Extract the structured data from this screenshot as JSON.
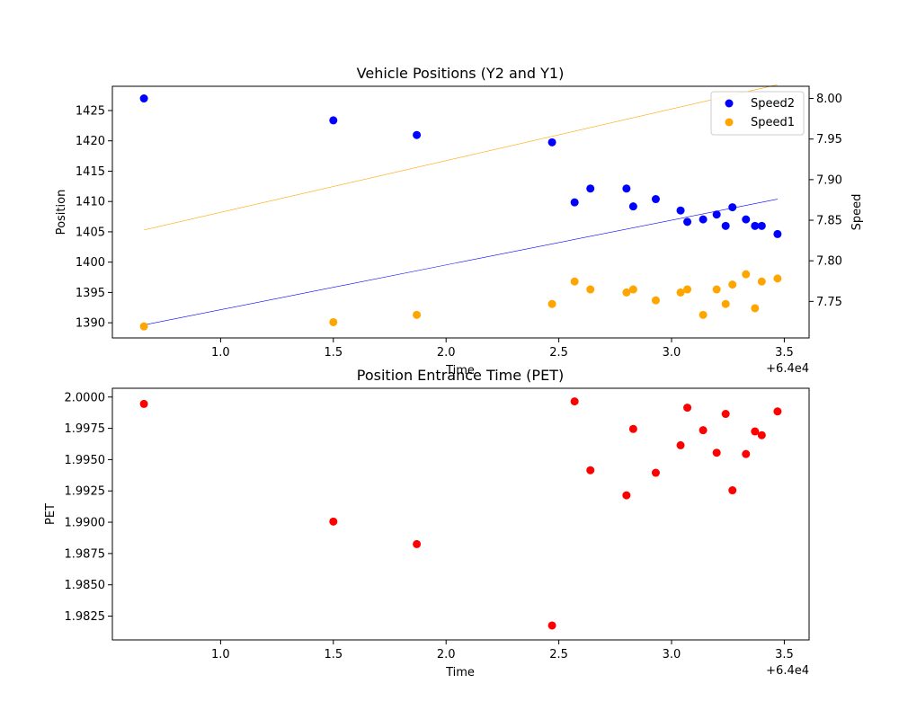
{
  "chart_data": [
    {
      "type": "scatter",
      "title": "Vehicle Positions (Y2 and Y1)",
      "xlabel": "Time",
      "ylabel": "Position",
      "y2label": "Speed",
      "x_offset_label": "+6.4e4",
      "xlim": [
        64000.52,
        64003.61
      ],
      "ylim": [
        1387.5,
        1429.0
      ],
      "y2lim": [
        7.705,
        8.015
      ],
      "x_ticks": [
        {
          "v": 64001.0,
          "label": "1.0"
        },
        {
          "v": 64001.5,
          "label": "1.5"
        },
        {
          "v": 64002.0,
          "label": "2.0"
        },
        {
          "v": 64002.5,
          "label": "2.5"
        },
        {
          "v": 64003.0,
          "label": "3.0"
        },
        {
          "v": 64003.5,
          "label": "3.5"
        }
      ],
      "y_ticks": [
        1390,
        1395,
        1400,
        1405,
        1410,
        1415,
        1420,
        1425
      ],
      "y2_ticks": [
        "7.75",
        "7.80",
        "7.85",
        "7.90",
        "7.95",
        "8.00"
      ],
      "legend": {
        "placement": "top-right",
        "entries": [
          {
            "name": "Speed2",
            "color": "#0000ff"
          },
          {
            "name": "Speed1",
            "color": "#ffa500"
          }
        ]
      },
      "series": [
        {
          "name": "Speed2",
          "color": "#0000ff",
          "axis": "right",
          "x": [
            64000.66,
            64001.5,
            64001.87,
            64002.47,
            64002.57,
            64002.64,
            64002.8,
            64002.83,
            64002.93,
            64003.04,
            64003.07,
            64003.14,
            64003.2,
            64003.24,
            64003.27,
            64003.33,
            64003.37,
            64003.4,
            64003.47
          ],
          "y": [
            8.0,
            7.973,
            7.955,
            7.946,
            7.872,
            7.889,
            7.889,
            7.867,
            7.876,
            7.862,
            7.848,
            7.851,
            7.857,
            7.843,
            7.866,
            7.851,
            7.843,
            7.843,
            7.833
          ]
        },
        {
          "name": "Speed1",
          "color": "#ffa500",
          "axis": "left",
          "x": [
            64000.66,
            64001.5,
            64001.87,
            64002.47,
            64002.57,
            64002.64,
            64002.8,
            64002.83,
            64002.93,
            64003.04,
            64003.07,
            64003.14,
            64003.2,
            64003.24,
            64003.27,
            64003.33,
            64003.37,
            64003.4,
            64003.47
          ],
          "y": [
            1389.4,
            1390.1,
            1391.3,
            1393.1,
            1396.8,
            1395.5,
            1395.0,
            1395.5,
            1393.7,
            1395.0,
            1395.5,
            1391.3,
            1395.5,
            1393.1,
            1396.3,
            1398.0,
            1392.4,
            1396.8,
            1397.3
          ]
        }
      ],
      "trend_lines": [
        {
          "color": "#ffa500",
          "axis": "right",
          "x": [
            64000.66,
            64003.47
          ],
          "y": [
            7.838,
            8.017
          ]
        },
        {
          "color": "#0000ff",
          "axis": "right",
          "x": [
            64000.66,
            64003.47
          ],
          "y": [
            7.721,
            7.876
          ]
        }
      ]
    },
    {
      "type": "scatter",
      "title": "Position Entrance Time (PET)",
      "xlabel": "Time",
      "ylabel": "PET",
      "x_offset_label": "+6.4e4",
      "xlim": [
        64000.52,
        64003.61
      ],
      "ylim": [
        1.9806,
        2.0007
      ],
      "x_ticks": [
        {
          "v": 64001.0,
          "label": "1.0"
        },
        {
          "v": 64001.5,
          "label": "1.5"
        },
        {
          "v": 64002.0,
          "label": "2.0"
        },
        {
          "v": 64002.5,
          "label": "2.5"
        },
        {
          "v": 64003.0,
          "label": "3.0"
        },
        {
          "v": 64003.5,
          "label": "3.5"
        }
      ],
      "y_ticks": [
        "1.9825",
        "1.9850",
        "1.9875",
        "1.9900",
        "1.9925",
        "1.9950",
        "1.9975",
        "2.0000"
      ],
      "series": [
        {
          "name": "PET",
          "color": "#ff0000",
          "x": [
            64000.66,
            64001.5,
            64001.87,
            64002.47,
            64002.57,
            64002.64,
            64002.8,
            64002.83,
            64002.93,
            64003.04,
            64003.07,
            64003.14,
            64003.2,
            64003.24,
            64003.27,
            64003.33,
            64003.37,
            64003.4,
            64003.47
          ],
          "y": [
            1.99945,
            1.99005,
            1.98825,
            1.98175,
            1.99965,
            1.99415,
            1.99215,
            1.99745,
            1.99395,
            1.99615,
            1.99915,
            1.99735,
            1.99555,
            1.99865,
            1.99255,
            1.99545,
            1.99725,
            1.99695,
            1.99885
          ]
        }
      ]
    }
  ]
}
